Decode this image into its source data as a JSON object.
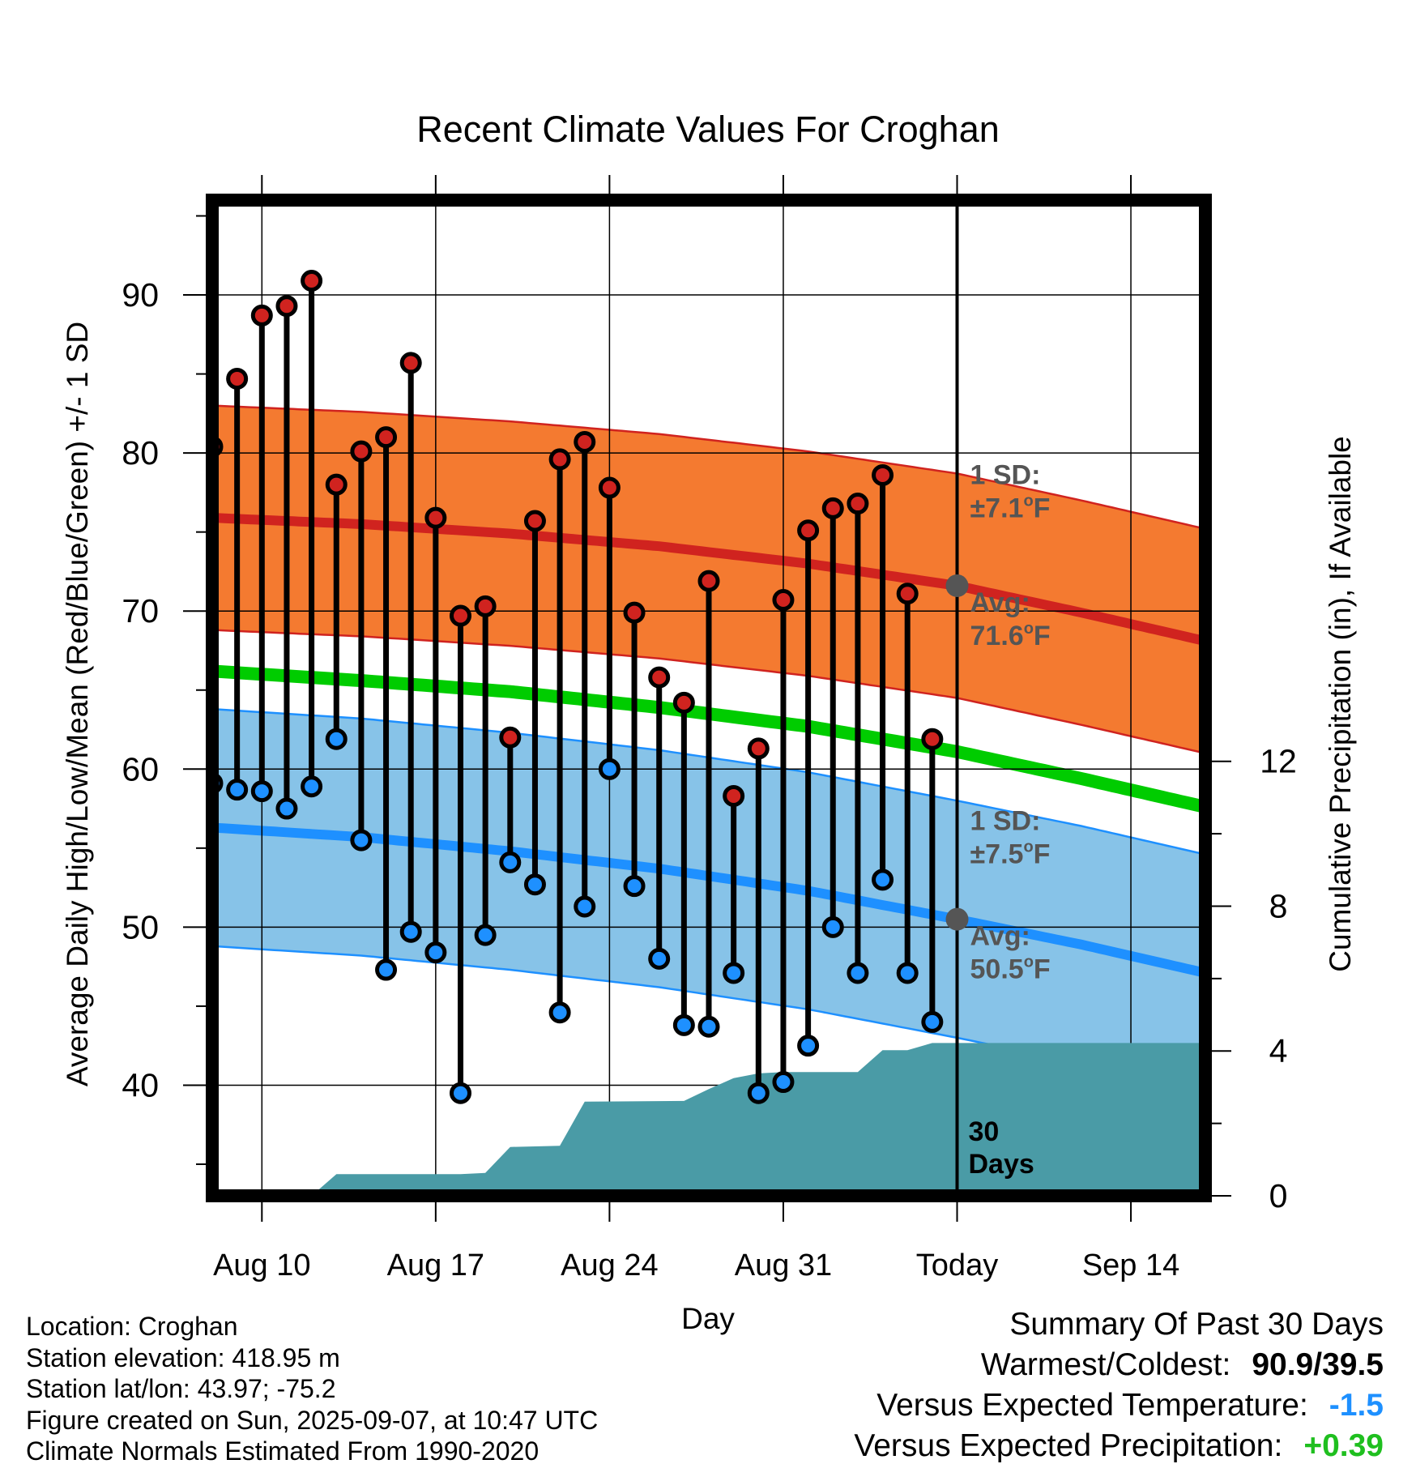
{
  "chart_data": {
    "type": "line",
    "title": "Recent Climate Values For Croghan",
    "xlabel": "Day",
    "ylabel": "Average Daily High/Low/Mean (Red/Blue/Green) +/- 1 SD",
    "y2label": "Cumulative Precipitation (in), If Available",
    "ylim": [
      33,
      96
    ],
    "y2lim": [
      0,
      27.5
    ],
    "xlim": [
      "2025-08-08",
      "2025-09-17"
    ],
    "yticks": [
      "40",
      "50",
      "60",
      "70",
      "80",
      "90"
    ],
    "y2ticks": [
      "0",
      "4",
      "8",
      "12"
    ],
    "xticks": [
      "Aug 10",
      "Aug 17",
      "Aug 24",
      "Aug 31",
      "Today",
      "Sep 14"
    ],
    "today_label": "30 Days",
    "grid": true,
    "dates": [
      "2025-08-08",
      "2025-08-09",
      "2025-08-10",
      "2025-08-11",
      "2025-08-12",
      "2025-08-13",
      "2025-08-14",
      "2025-08-15",
      "2025-08-16",
      "2025-08-17",
      "2025-08-18",
      "2025-08-19",
      "2025-08-20",
      "2025-08-21",
      "2025-08-22",
      "2025-08-23",
      "2025-08-24",
      "2025-08-25",
      "2025-08-26",
      "2025-08-27",
      "2025-08-28",
      "2025-08-29",
      "2025-08-30",
      "2025-08-31",
      "2025-09-01",
      "2025-09-02",
      "2025-09-03",
      "2025-09-04",
      "2025-09-05",
      "2025-09-06"
    ],
    "daily_high": [
      80.4,
      84.7,
      88.7,
      89.3,
      90.9,
      78.0,
      80.1,
      81.0,
      85.7,
      75.9,
      69.7,
      70.3,
      62.0,
      75.7,
      79.6,
      80.7,
      77.8,
      69.9,
      65.8,
      64.2,
      71.9,
      58.3,
      61.3,
      70.7,
      75.1,
      76.5,
      76.8,
      78.6,
      71.1,
      61.9
    ],
    "daily_low": [
      59.1,
      58.7,
      58.6,
      57.5,
      58.9,
      61.9,
      55.5,
      47.3,
      49.7,
      48.4,
      39.5,
      49.5,
      54.1,
      52.7,
      44.6,
      51.3,
      60.0,
      52.6,
      48.0,
      43.8,
      43.7,
      47.1,
      39.5,
      40.2,
      42.5,
      50.0,
      47.1,
      53.0,
      47.1,
      44.0
    ],
    "normals": {
      "dates": [
        "2025-08-08",
        "2025-08-14",
        "2025-08-20",
        "2025-08-26",
        "2025-09-01",
        "2025-09-07",
        "2025-09-12",
        "2025-09-17"
      ],
      "high_mean": [
        75.9,
        75.5,
        74.9,
        74.1,
        73.0,
        71.6,
        69.9,
        68.1
      ],
      "high_sd": 7.1,
      "mean": [
        66.2,
        65.6,
        64.9,
        63.9,
        62.7,
        61.1,
        59.4,
        57.6
      ],
      "low_mean": [
        56.3,
        55.7,
        54.8,
        53.7,
        52.3,
        50.5,
        48.9,
        47.1
      ],
      "low_sd": 7.5
    },
    "cumulative_precip": {
      "dates": [
        "2025-08-08",
        "2025-08-12",
        "2025-08-13",
        "2025-08-18",
        "2025-08-19",
        "2025-08-20",
        "2025-08-22",
        "2025-08-23",
        "2025-08-27",
        "2025-08-28",
        "2025-08-29",
        "2025-08-30",
        "2025-08-31",
        "2025-09-03",
        "2025-09-04",
        "2025-09-05",
        "2025-09-06",
        "2025-09-17"
      ],
      "values": [
        0,
        0,
        0.6,
        0.6,
        0.63,
        1.35,
        1.38,
        2.6,
        2.62,
        2.95,
        3.25,
        3.38,
        3.42,
        3.42,
        4.02,
        4.02,
        4.22,
        4.22
      ]
    },
    "annotations": {
      "high_sd_label": "1 SD:",
      "high_sd_value": "±7.1",
      "avg_label": "Avg:",
      "high_avg_value": "71.6",
      "low_sd_label": "1 SD:",
      "low_sd_value": "±7.5",
      "low_avg_value": "50.5",
      "sup": "o",
      "unit": "F"
    },
    "colors": {
      "high_band": "#f47a30",
      "high_line": "#d0231f",
      "low_band": "#87c3e8",
      "low_line": "#1e90ff",
      "mean_line": "#00cc00",
      "precip": "#4a9ba6",
      "high_marker": "#d0231f",
      "low_marker": "#1e90ff",
      "annotation": "#555555"
    }
  },
  "info": {
    "location": "Location: Croghan",
    "elevation": "Station elevation: 418.95 m",
    "latlon": "Station lat/lon: 43.97; -75.2",
    "created": "Figure created on Sun, 2025-09-07, at 10:47 UTC",
    "normals": "Climate Normals Estimated From 1990-2020"
  },
  "summary": {
    "title": "Summary Of Past 30 Days",
    "warm_cold_label": "Warmest/Coldest:",
    "warm_cold_value": "90.9/39.5",
    "temp_label": "Versus Expected Temperature:",
    "temp_value": "-1.5",
    "precip_label": "Versus Expected Precipitation:",
    "precip_value": "+0.39"
  }
}
